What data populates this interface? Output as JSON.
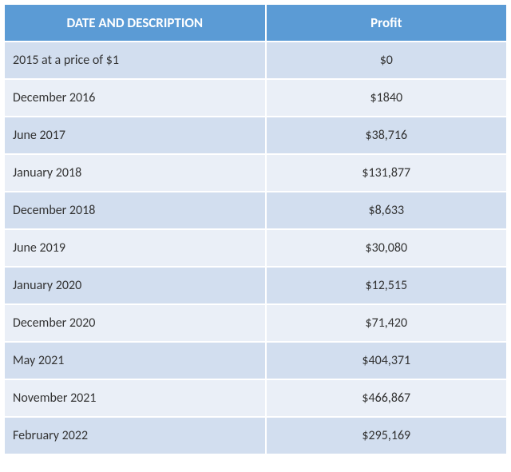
{
  "table": {
    "header_bg": "#5b9bd5",
    "header_fg": "#ffffff",
    "row_odd_bg": "#d2deef",
    "row_even_bg": "#eaeff7",
    "row_fg": "#333333",
    "columns": [
      "DATE AND DESCRIPTION",
      "Profit"
    ],
    "rows": [
      [
        "2015 at a price of $1",
        "$0"
      ],
      [
        "December 2016",
        "$1840"
      ],
      [
        "June 2017",
        "$38,716"
      ],
      [
        "January 2018",
        "$131,877"
      ],
      [
        "December 2018",
        "$8,633"
      ],
      [
        "June 2019",
        "$30,080"
      ],
      [
        "January 2020",
        "$12,515"
      ],
      [
        "December 2020",
        "$71,420"
      ],
      [
        "May 2021",
        "$404,371"
      ],
      [
        "November 2021",
        "$466,867"
      ],
      [
        "February 2022",
        "$295,169"
      ]
    ]
  }
}
